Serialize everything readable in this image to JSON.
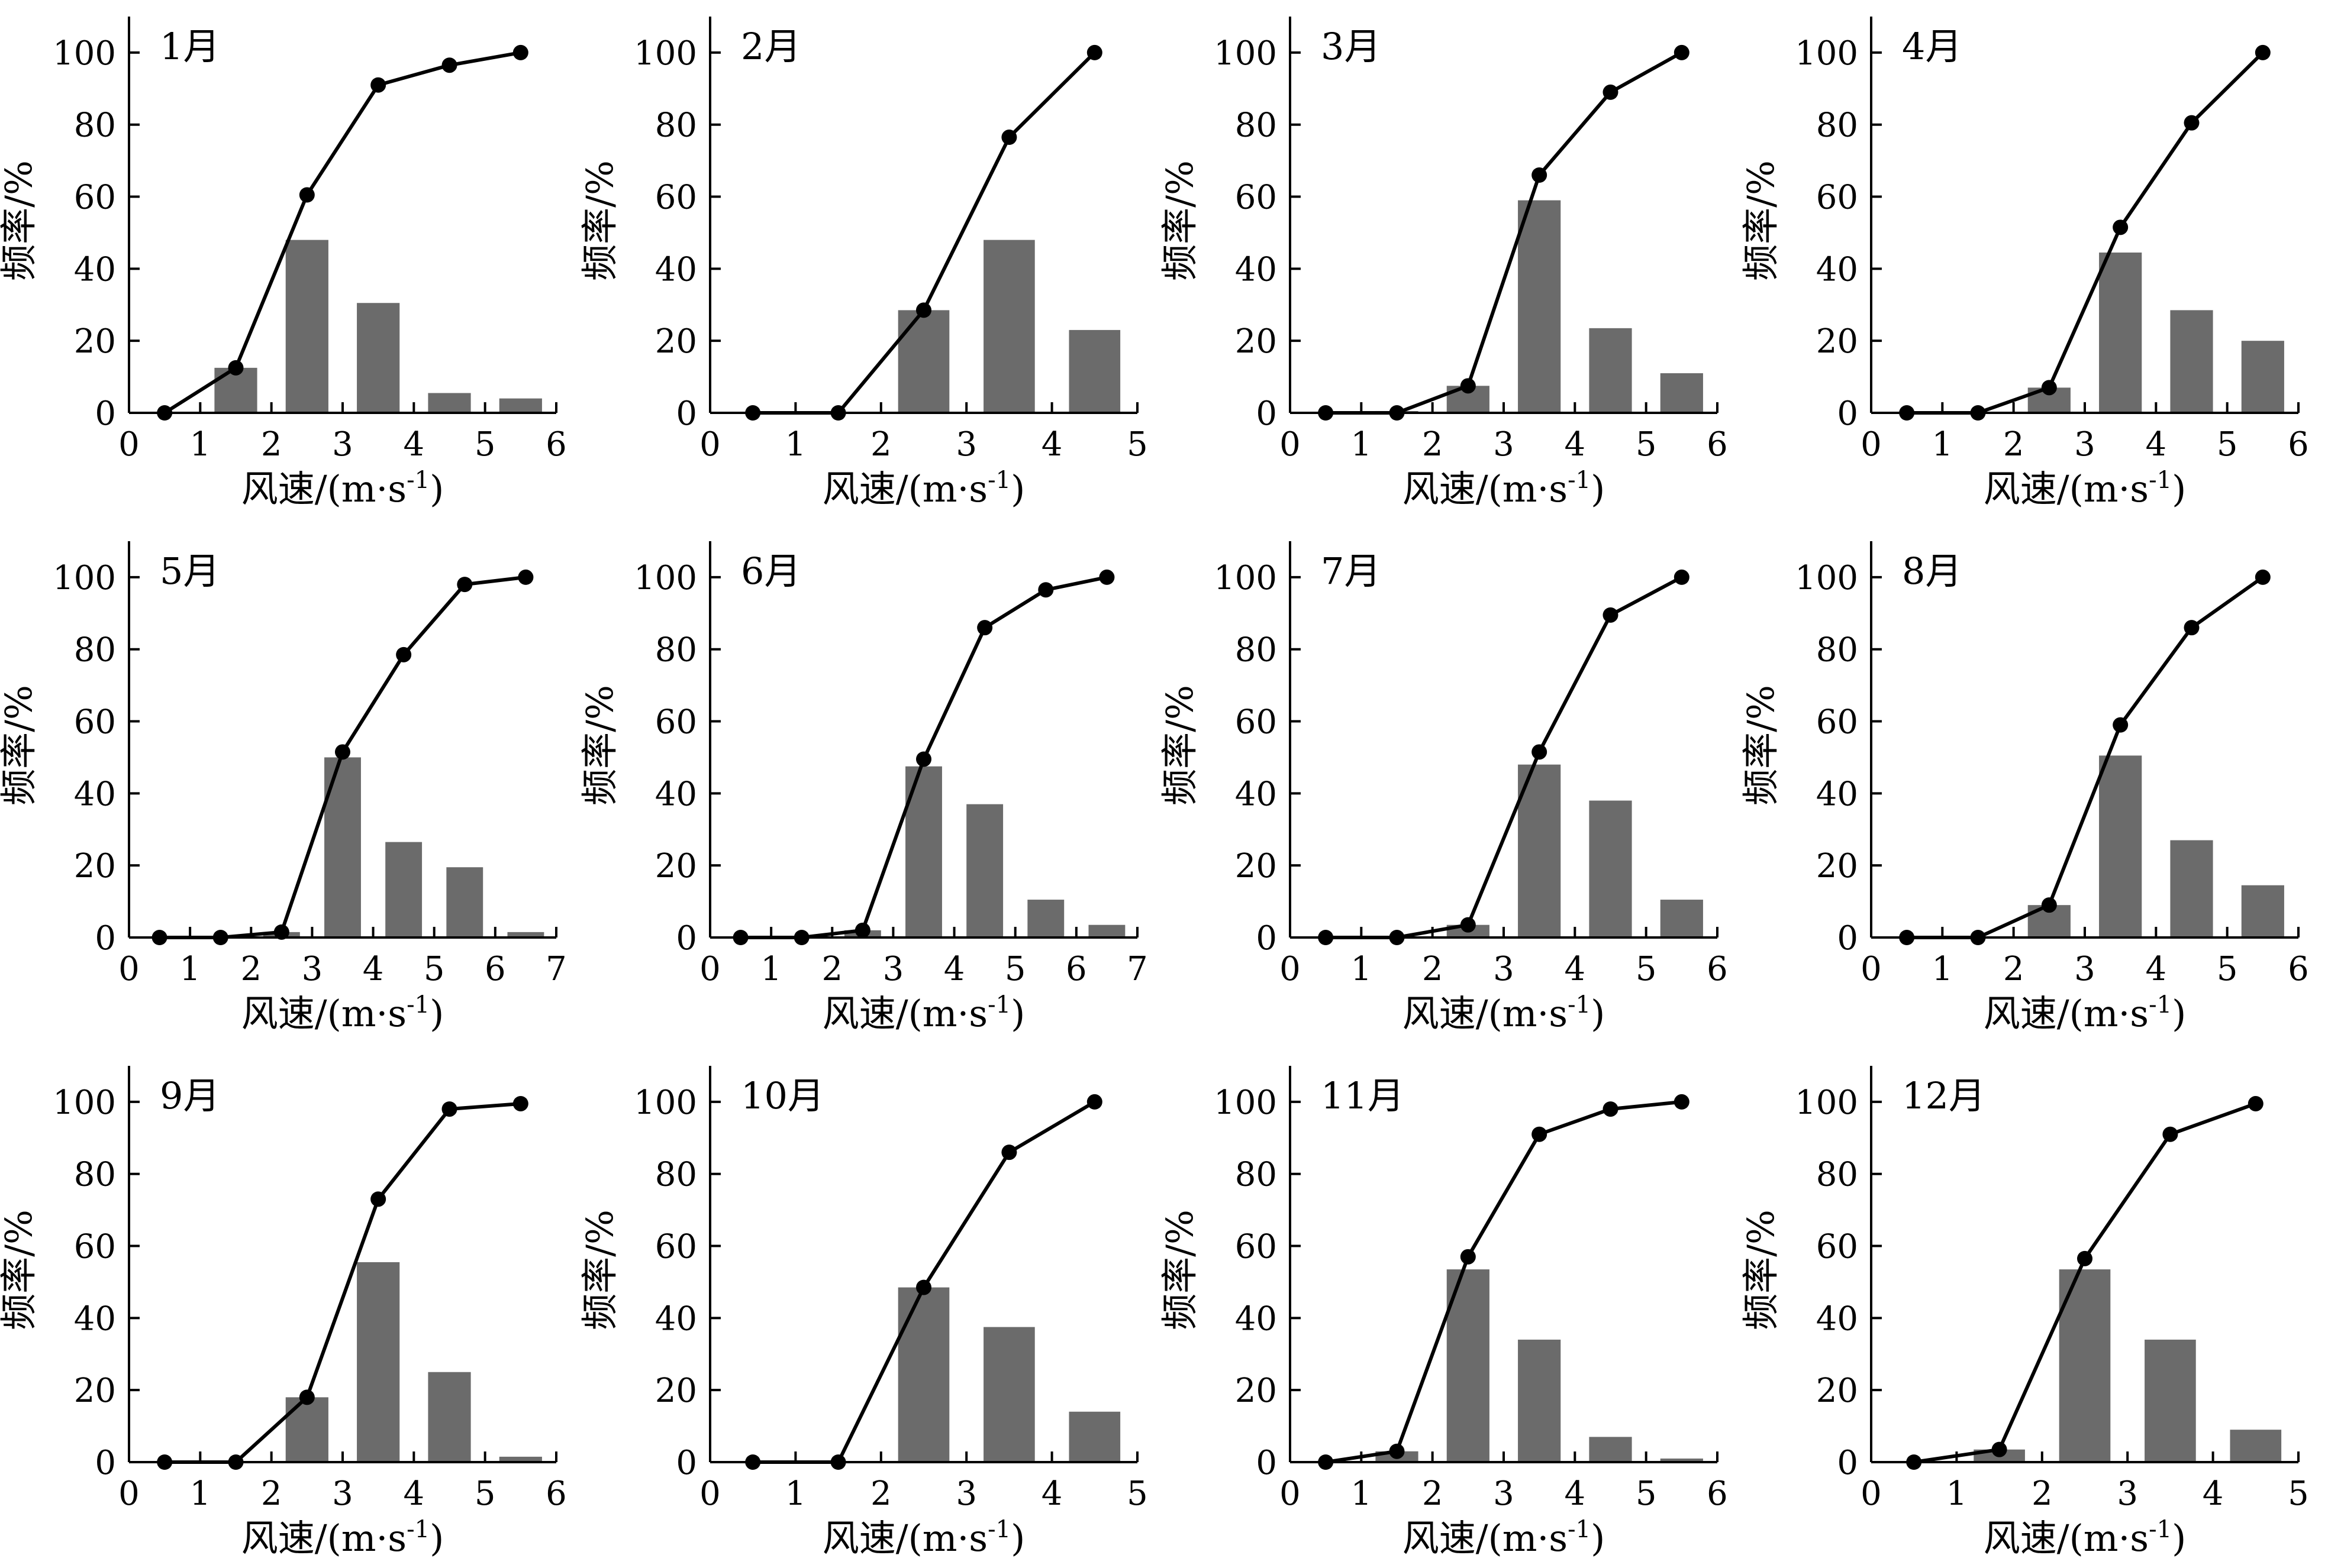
{
  "charts": [
    {
      "type": "bar+line",
      "title": "1月",
      "xlabel": "风速/(m·s",
      "xlabel_sup": "-1",
      "xlabel_close": ")",
      "ylabel": "频率/%",
      "xlim": [
        0,
        6
      ],
      "ylim": [
        0,
        110
      ],
      "xticks": [
        0,
        1,
        2,
        3,
        4,
        5,
        6
      ],
      "yticks": [
        0,
        20,
        40,
        60,
        80,
        100
      ],
      "bars": {
        "x": [
          1.5,
          2.5,
          3.5,
          4.5,
          5.5
        ],
        "values": [
          12.5,
          48,
          30.5,
          5.5,
          4
        ],
        "width": 0.6
      },
      "line": {
        "x": [
          0.5,
          1.5,
          2.5,
          3.5,
          4.5,
          5.5
        ],
        "values": [
          0,
          12.5,
          60.5,
          91,
          96.5,
          100
        ]
      }
    },
    {
      "type": "bar+line",
      "title": "2月",
      "xlabel": "风速/(m·s",
      "xlabel_sup": "-1",
      "xlabel_close": ")",
      "ylabel": "频率/%",
      "xlim": [
        0,
        5
      ],
      "ylim": [
        0,
        110
      ],
      "xticks": [
        0,
        1,
        2,
        3,
        4,
        5
      ],
      "yticks": [
        0,
        20,
        40,
        60,
        80,
        100
      ],
      "bars": {
        "x": [
          2.5,
          3.5,
          4.5
        ],
        "values": [
          28.5,
          48,
          23
        ],
        "width": 0.6
      },
      "line": {
        "x": [
          0.5,
          1.5,
          2.5,
          3.5,
          4.5
        ],
        "values": [
          0,
          0,
          28.5,
          76.5,
          100
        ]
      }
    },
    {
      "type": "bar+line",
      "title": "3月",
      "xlabel": "风速/(m·s",
      "xlabel_sup": "-1",
      "xlabel_close": ")",
      "ylabel": "频率/%",
      "xlim": [
        0,
        6
      ],
      "ylim": [
        0,
        110
      ],
      "xticks": [
        0,
        1,
        2,
        3,
        4,
        5,
        6
      ],
      "yticks": [
        0,
        20,
        40,
        60,
        80,
        100
      ],
      "bars": {
        "x": [
          1.5,
          2.5,
          3.5,
          4.5,
          5.5
        ],
        "values": [
          0.5,
          7.5,
          59,
          23.5,
          11
        ],
        "width": 0.6
      },
      "line": {
        "x": [
          0.5,
          1.5,
          2.5,
          3.5,
          4.5,
          5.5
        ],
        "values": [
          0,
          0,
          7.5,
          66,
          89,
          100
        ]
      }
    },
    {
      "type": "bar+line",
      "title": "4月",
      "xlabel": "风速/(m·s",
      "xlabel_sup": "-1",
      "xlabel_close": ")",
      "ylabel": "频率/%",
      "xlim": [
        0,
        6
      ],
      "ylim": [
        0,
        110
      ],
      "xticks": [
        0,
        1,
        2,
        3,
        4,
        5,
        6
      ],
      "yticks": [
        0,
        20,
        40,
        60,
        80,
        100
      ],
      "bars": {
        "x": [
          2.5,
          3.5,
          4.5,
          5.5
        ],
        "values": [
          7,
          44.5,
          28.5,
          20
        ],
        "width": 0.6
      },
      "line": {
        "x": [
          0.5,
          1.5,
          2.5,
          3.5,
          4.5,
          5.5
        ],
        "values": [
          0,
          0,
          7,
          51.5,
          80.5,
          100
        ]
      }
    },
    {
      "type": "bar+line",
      "title": "5月",
      "xlabel": "风速/(m·s",
      "xlabel_sup": "-1",
      "xlabel_close": ")",
      "ylabel": "频率/%",
      "xlim": [
        0,
        7
      ],
      "ylim": [
        0,
        110
      ],
      "xticks": [
        0,
        1,
        2,
        3,
        4,
        5,
        6,
        7
      ],
      "yticks": [
        0,
        20,
        40,
        60,
        80,
        100
      ],
      "bars": {
        "x": [
          2.5,
          3.5,
          4.5,
          5.5,
          6.5
        ],
        "values": [
          1.5,
          50,
          26.5,
          19.5,
          1.5
        ],
        "width": 0.6
      },
      "line": {
        "x": [
          0.5,
          1.5,
          2.5,
          3.5,
          4.5,
          5.5,
          6.5
        ],
        "values": [
          0,
          0,
          1.5,
          51.5,
          78.5,
          98,
          100
        ]
      }
    },
    {
      "type": "bar+line",
      "title": "6月",
      "xlabel": "风速/(m·s",
      "xlabel_sup": "-1",
      "xlabel_close": ")",
      "ylabel": "频率/%",
      "xlim": [
        0,
        7
      ],
      "ylim": [
        0,
        110
      ],
      "xticks": [
        0,
        1,
        2,
        3,
        4,
        5,
        6,
        7
      ],
      "yticks": [
        0,
        20,
        40,
        60,
        80,
        100
      ],
      "bars": {
        "x": [
          2.5,
          3.5,
          4.5,
          5.5,
          6.5
        ],
        "values": [
          2,
          47.5,
          37,
          10.5,
          3.5
        ],
        "width": 0.6
      },
      "line": {
        "x": [
          0.5,
          1.5,
          2.5,
          3.5,
          4.5,
          5.5,
          6.5
        ],
        "values": [
          0,
          0,
          2,
          49.5,
          86,
          96.5,
          100
        ]
      }
    },
    {
      "type": "bar+line",
      "title": "7月",
      "xlabel": "风速/(m·s",
      "xlabel_sup": "-1",
      "xlabel_close": ")",
      "ylabel": "频率/%",
      "xlim": [
        0,
        6
      ],
      "ylim": [
        0,
        110
      ],
      "xticks": [
        0,
        1,
        2,
        3,
        4,
        5,
        6
      ],
      "yticks": [
        0,
        20,
        40,
        60,
        80,
        100
      ],
      "bars": {
        "x": [
          2.5,
          3.5,
          4.5,
          5.5
        ],
        "values": [
          3.5,
          48,
          38,
          10.5
        ],
        "width": 0.6
      },
      "line": {
        "x": [
          0.5,
          1.5,
          2.5,
          3.5,
          4.5,
          5.5
        ],
        "values": [
          0,
          0,
          3.5,
          51.5,
          89.5,
          100
        ]
      }
    },
    {
      "type": "bar+line",
      "title": "8月",
      "xlabel": "风速/(m·s",
      "xlabel_sup": "-1",
      "xlabel_close": ")",
      "ylabel": "频率/%",
      "xlim": [
        0,
        6
      ],
      "ylim": [
        0,
        110
      ],
      "xticks": [
        0,
        1,
        2,
        3,
        4,
        5,
        6
      ],
      "yticks": [
        0,
        20,
        40,
        60,
        80,
        100
      ],
      "bars": {
        "x": [
          2.5,
          3.5,
          4.5,
          5.5
        ],
        "values": [
          9,
          50.5,
          27,
          14.5
        ],
        "width": 0.6
      },
      "line": {
        "x": [
          0.5,
          1.5,
          2.5,
          3.5,
          4.5,
          5.5
        ],
        "values": [
          0,
          0,
          9,
          59,
          86,
          100
        ]
      }
    },
    {
      "type": "bar+line",
      "title": "9月",
      "xlabel": "风速/(m·s",
      "xlabel_sup": "-1",
      "xlabel_close": ")",
      "ylabel": "频率/%",
      "xlim": [
        0,
        6
      ],
      "ylim": [
        0,
        110
      ],
      "xticks": [
        0,
        1,
        2,
        3,
        4,
        5,
        6
      ],
      "yticks": [
        0,
        20,
        40,
        60,
        80,
        100
      ],
      "bars": {
        "x": [
          2.5,
          3.5,
          4.5,
          5.5
        ],
        "values": [
          18,
          55.5,
          25,
          1.5
        ],
        "width": 0.6
      },
      "line": {
        "x": [
          0.5,
          1.5,
          2.5,
          3.5,
          4.5,
          5.5
        ],
        "values": [
          0,
          0,
          18,
          73,
          98,
          99.5
        ]
      }
    },
    {
      "type": "bar+line",
      "title": "10月",
      "xlabel": "风速/(m·s",
      "xlabel_sup": "-1",
      "xlabel_close": ")",
      "ylabel": "频率/%",
      "xlim": [
        0,
        5
      ],
      "ylim": [
        0,
        110
      ],
      "xticks": [
        0,
        1,
        2,
        3,
        4,
        5
      ],
      "yticks": [
        0,
        20,
        40,
        60,
        80,
        100
      ],
      "bars": {
        "x": [
          2.5,
          3.5,
          4.5
        ],
        "values": [
          48.5,
          37.5,
          14
        ],
        "width": 0.6
      },
      "line": {
        "x": [
          0.5,
          1.5,
          2.5,
          3.5,
          4.5
        ],
        "values": [
          0,
          0,
          48.5,
          86,
          100
        ]
      }
    },
    {
      "type": "bar+line",
      "title": "11月",
      "xlabel": "风速/(m·s",
      "xlabel_sup": "-1",
      "xlabel_close": ")",
      "ylabel": "频率/%",
      "xlim": [
        0,
        6
      ],
      "ylim": [
        0,
        110
      ],
      "xticks": [
        0,
        1,
        2,
        3,
        4,
        5,
        6
      ],
      "yticks": [
        0,
        20,
        40,
        60,
        80,
        100
      ],
      "bars": {
        "x": [
          1.5,
          2.5,
          3.5,
          4.5,
          5.5
        ],
        "values": [
          3,
          53.5,
          34,
          7,
          1
        ],
        "width": 0.6
      },
      "line": {
        "x": [
          0.5,
          1.5,
          2.5,
          3.5,
          4.5,
          5.5
        ],
        "values": [
          0,
          3,
          57,
          91,
          98,
          100
        ]
      }
    },
    {
      "type": "bar+line",
      "title": "12月",
      "xlabel": "风速/(m·s",
      "xlabel_sup": "-1",
      "xlabel_close": ")",
      "ylabel": "频率/%",
      "xlim": [
        0,
        5
      ],
      "ylim": [
        0,
        110
      ],
      "xticks": [
        0,
        1,
        2,
        3,
        4,
        5
      ],
      "yticks": [
        0,
        20,
        40,
        60,
        80,
        100
      ],
      "bars": {
        "x": [
          1.5,
          2.5,
          3.5,
          4.5
        ],
        "values": [
          3.5,
          53.5,
          34,
          9
        ],
        "width": 0.6
      },
      "line": {
        "x": [
          0.5,
          1.5,
          2.5,
          3.5,
          4.5
        ],
        "values": [
          0,
          3.5,
          56.5,
          91,
          99.5
        ]
      }
    }
  ],
  "colors": {
    "bar": "#6b6b6b",
    "line": "#000000",
    "axis": "#000000"
  }
}
